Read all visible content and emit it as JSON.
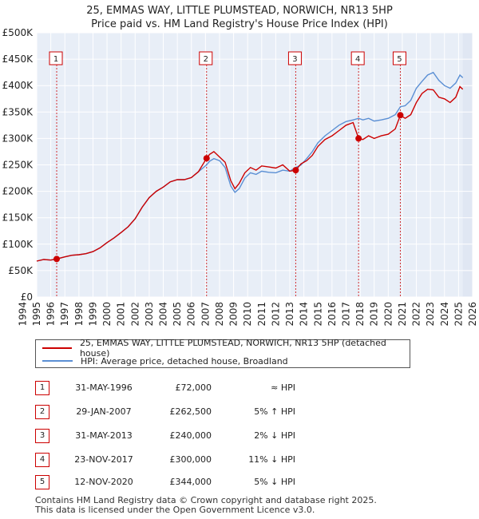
{
  "header": {
    "title_line1": "25, EMMAS WAY, LITTLE PLUMSTEAD, NORWICH, NR13 5HP",
    "title_line2": "Price paid vs. HM Land Registry's House Price Index (HPI)"
  },
  "colors": {
    "price_line": "#cc0000",
    "hpi_line": "#5b8fd4",
    "plot_bg": "#e8eef7",
    "shade": "#dfe6f2",
    "grid": "#ffffff",
    "marker_border": "#cc0000"
  },
  "chart_data": {
    "type": "line",
    "title": "25, EMMAS WAY, LITTLE PLUMSTEAD, NORWICH, NR13 5HP — Price paid vs. HM Land Registry's House Price Index (HPI)",
    "xlim": [
      1995,
      2026
    ],
    "ylim": [
      0,
      500000
    ],
    "x_ticks": [
      1994,
      1995,
      1996,
      1997,
      1998,
      1999,
      2000,
      2001,
      2002,
      2003,
      2004,
      2005,
      2006,
      2007,
      2008,
      2009,
      2010,
      2011,
      2012,
      2013,
      2014,
      2015,
      2016,
      2017,
      2018,
      2019,
      2020,
      2021,
      2022,
      2023,
      2024,
      2025,
      2026
    ],
    "y_ticks": [
      {
        "value": 0,
        "label": "£0"
      },
      {
        "value": 50000,
        "label": "£50K"
      },
      {
        "value": 100000,
        "label": "£100K"
      },
      {
        "value": 150000,
        "label": "£150K"
      },
      {
        "value": 200000,
        "label": "£200K"
      },
      {
        "value": 250000,
        "label": "£250K"
      },
      {
        "value": 300000,
        "label": "£300K"
      },
      {
        "value": 350000,
        "label": "£350K"
      },
      {
        "value": 400000,
        "label": "£400K"
      },
      {
        "value": 450000,
        "label": "£450K"
      },
      {
        "value": 500000,
        "label": "£500K"
      }
    ],
    "shaded_range": [
      2025.3,
      2026
    ],
    "series": [
      {
        "name": "25, EMMAS WAY, LITTLE PLUMSTEAD, NORWICH, NR13 5HP (detached house)",
        "color": "#cc0000",
        "x": [
          1995.0,
          1995.5,
          1996.0,
          1996.42,
          1997.0,
          1997.5,
          1998.0,
          1998.5,
          1999.0,
          1999.5,
          2000.0,
          2000.5,
          2001.0,
          2001.5,
          2002.0,
          2002.5,
          2003.0,
          2003.5,
          2004.0,
          2004.5,
          2005.0,
          2005.5,
          2006.0,
          2006.5,
          2007.08,
          2007.3,
          2007.6,
          2008.0,
          2008.4,
          2008.8,
          2009.1,
          2009.4,
          2009.8,
          2010.2,
          2010.6,
          2011.0,
          2011.5,
          2012.0,
          2012.5,
          2013.0,
          2013.42,
          2013.8,
          2014.2,
          2014.6,
          2015.0,
          2015.5,
          2016.0,
          2016.5,
          2017.0,
          2017.5,
          2017.89,
          2018.2,
          2018.6,
          2019.0,
          2019.5,
          2020.0,
          2020.5,
          2020.86,
          2021.2,
          2021.6,
          2022.0,
          2022.4,
          2022.8,
          2023.2,
          2023.6,
          2024.0,
          2024.4,
          2024.8,
          2025.1,
          2025.3
        ],
        "values": [
          68000,
          71000,
          70000,
          72000,
          76000,
          79000,
          80000,
          82000,
          86000,
          93000,
          103000,
          112000,
          122000,
          133000,
          148000,
          170000,
          188000,
          200000,
          208000,
          218000,
          222000,
          222000,
          226000,
          237000,
          262500,
          270000,
          275000,
          265000,
          255000,
          220000,
          205000,
          215000,
          235000,
          245000,
          240000,
          248000,
          246000,
          244000,
          250000,
          238000,
          240000,
          252000,
          258000,
          268000,
          285000,
          298000,
          305000,
          315000,
          325000,
          330000,
          300000,
          298000,
          305000,
          300000,
          305000,
          308000,
          318000,
          344000,
          338000,
          345000,
          368000,
          385000,
          393000,
          392000,
          378000,
          375000,
          368000,
          378000,
          398000,
          393000
        ]
      },
      {
        "name": "HPI: Average price, detached house, Broadland",
        "color": "#5b8fd4",
        "x": [
          1995.0,
          1995.5,
          1996.0,
          1996.42,
          1997.0,
          1997.5,
          1998.0,
          1998.5,
          1999.0,
          1999.5,
          2000.0,
          2000.5,
          2001.0,
          2001.5,
          2002.0,
          2002.5,
          2003.0,
          2003.5,
          2004.0,
          2004.5,
          2005.0,
          2005.5,
          2006.0,
          2006.5,
          2007.08,
          2007.3,
          2007.6,
          2008.0,
          2008.4,
          2008.8,
          2009.1,
          2009.4,
          2009.8,
          2010.2,
          2010.6,
          2011.0,
          2011.5,
          2012.0,
          2012.5,
          2013.0,
          2013.42,
          2013.8,
          2014.2,
          2014.6,
          2015.0,
          2015.5,
          2016.0,
          2016.5,
          2017.0,
          2017.5,
          2017.89,
          2018.2,
          2018.6,
          2019.0,
          2019.5,
          2020.0,
          2020.5,
          2020.86,
          2021.2,
          2021.6,
          2022.0,
          2022.4,
          2022.8,
          2023.2,
          2023.6,
          2024.0,
          2024.4,
          2024.8,
          2025.1,
          2025.3
        ],
        "values": [
          68000,
          71000,
          70000,
          72000,
          76000,
          79000,
          80000,
          82000,
          86000,
          93000,
          103000,
          112000,
          122000,
          133000,
          148000,
          170000,
          188000,
          200000,
          208000,
          218000,
          222000,
          222000,
          226000,
          237000,
          250000,
          257000,
          262000,
          258000,
          245000,
          210000,
          198000,
          205000,
          225000,
          235000,
          232000,
          238000,
          236000,
          235000,
          240000,
          238000,
          245000,
          250000,
          262000,
          275000,
          292000,
          305000,
          315000,
          325000,
          332000,
          335000,
          338000,
          335000,
          338000,
          333000,
          335000,
          338000,
          345000,
          360000,
          362000,
          372000,
          395000,
          408000,
          420000,
          425000,
          410000,
          400000,
          395000,
          405000,
          420000,
          415000
        ]
      }
    ],
    "sales": [
      {
        "label": "1",
        "x": 1996.42,
        "value": 72000,
        "date": "31-MAY-1996",
        "price": "£72,000",
        "hpi": "≈ HPI"
      },
      {
        "label": "2",
        "x": 2007.08,
        "value": 262500,
        "date": "29-JAN-2007",
        "price": "£262,500",
        "hpi": "5% ↑ HPI"
      },
      {
        "label": "3",
        "x": 2013.42,
        "value": 240000,
        "date": "31-MAY-2013",
        "price": "£240,000",
        "hpi": "2% ↓ HPI"
      },
      {
        "label": "4",
        "x": 2017.89,
        "value": 300000,
        "date": "23-NOV-2017",
        "price": "£300,000",
        "hpi": "11% ↓ HPI"
      },
      {
        "label": "5",
        "x": 2020.86,
        "value": 344000,
        "date": "12-NOV-2020",
        "price": "£344,000",
        "hpi": "5% ↓ HPI"
      }
    ]
  },
  "legend": {
    "price_label": "25, EMMAS WAY, LITTLE PLUMSTEAD, NORWICH, NR13 5HP (detached house)",
    "hpi_label": "HPI: Average price, detached house, Broadland"
  },
  "footer": {
    "line1": "Contains HM Land Registry data © Crown copyright and database right 2025.",
    "line2": "This data is licensed under the Open Government Licence v3.0."
  }
}
